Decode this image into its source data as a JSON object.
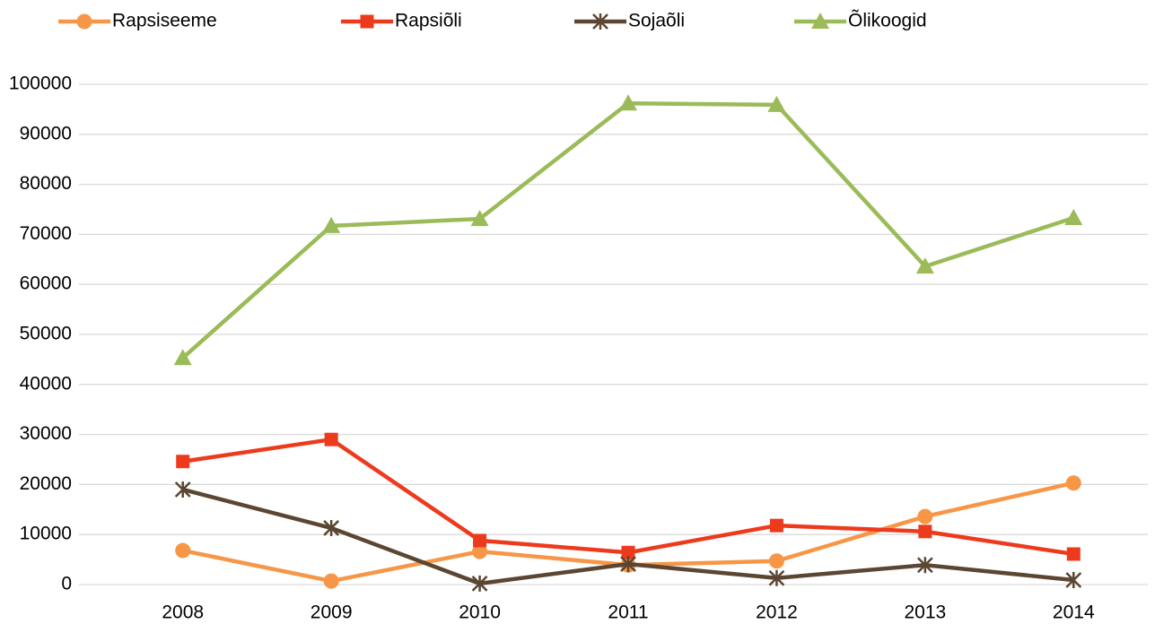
{
  "chart_data": {
    "type": "line",
    "categories": [
      "2008",
      "2009",
      "2010",
      "2011",
      "2012",
      "2013",
      "2014"
    ],
    "series": [
      {
        "name": "Rapsiseeme",
        "color": "#f79646",
        "marker": "circle",
        "values": [
          6800,
          700,
          6600,
          3900,
          4700,
          13600,
          20300
        ]
      },
      {
        "name": "Rapsiõli",
        "color": "#ee3a1c",
        "marker": "square",
        "values": [
          24600,
          29000,
          8800,
          6400,
          11800,
          10600,
          6100
        ]
      },
      {
        "name": "Sojaõli",
        "color": "#5a4632",
        "marker": "star",
        "values": [
          19000,
          11300,
          200,
          4100,
          1300,
          3900,
          900
        ]
      },
      {
        "name": "Õlikoogid",
        "color": "#9bbb59",
        "marker": "triangle",
        "values": [
          45300,
          71700,
          73100,
          96200,
          95900,
          63600,
          73300
        ]
      }
    ],
    "ylim": [
      0,
      100000
    ],
    "yticks": [
      0,
      10000,
      20000,
      30000,
      40000,
      50000,
      60000,
      70000,
      80000,
      90000,
      100000
    ],
    "grid": true,
    "legend": "top"
  }
}
